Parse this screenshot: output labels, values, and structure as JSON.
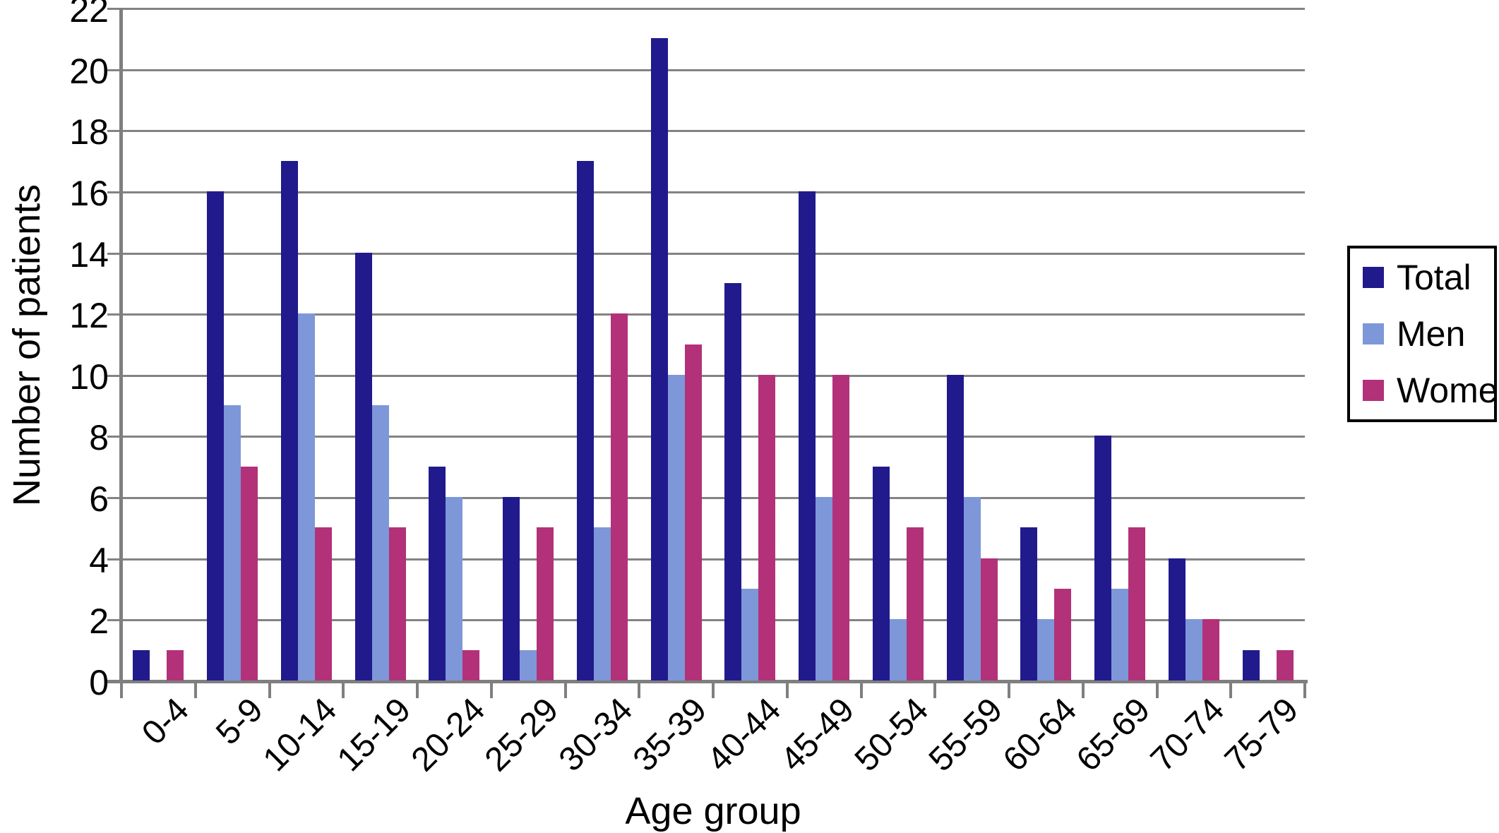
{
  "chart_data": {
    "type": "bar",
    "title": "",
    "xlabel": "Age group",
    "ylabel": "Number of patients",
    "categories": [
      "0-4",
      "5-9",
      "10-14",
      "15-19",
      "20-24",
      "25-29",
      "30-34",
      "35-39",
      "40-44",
      "45-49",
      "50-54",
      "55-59",
      "60-64",
      "65-69",
      "70-74",
      "75-79"
    ],
    "series": [
      {
        "name": "Total",
        "color": "#211A8C",
        "values": [
          1,
          16,
          17,
          14,
          7,
          6,
          17,
          21,
          13,
          16,
          7,
          10,
          5,
          8,
          4,
          1
        ]
      },
      {
        "name": "Men",
        "color": "#7D97D8",
        "values": [
          0,
          9,
          12,
          9,
          6,
          1,
          5,
          10,
          3,
          6,
          2,
          6,
          2,
          3,
          2,
          0
        ]
      },
      {
        "name": "Women",
        "color": "#B23179",
        "values": [
          1,
          7,
          5,
          5,
          1,
          5,
          12,
          11,
          10,
          10,
          5,
          4,
          3,
          5,
          2,
          1
        ]
      }
    ],
    "ylim": [
      0,
      22
    ],
    "ytick_step": 2,
    "grid": true,
    "legend_position": "right"
  },
  "colors": {
    "background": "#FFFFFF",
    "gridline": "#838383",
    "axis": "#7F7F7F",
    "text": "#000000",
    "legend_border": "#000000"
  }
}
